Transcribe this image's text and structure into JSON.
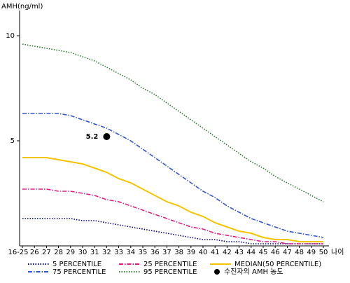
{
  "chart_data": {
    "type": "line",
    "y_label": "AMH(ng/ml)",
    "x_label": "나이",
    "categories": [
      "16-25",
      "26",
      "27",
      "28",
      "29",
      "30",
      "31",
      "32",
      "33",
      "34",
      "35",
      "36",
      "37",
      "38",
      "39",
      "40",
      "41",
      "42",
      "43",
      "44",
      "45",
      "46",
      "47",
      "48",
      "49",
      "50"
    ],
    "ylim": [
      0,
      11.2
    ],
    "yticks": [
      5,
      10
    ],
    "series": [
      {
        "name": "5 PERCENTILE",
        "color": "#000080",
        "style": "dotted",
        "values": [
          1.3,
          1.3,
          1.3,
          1.3,
          1.3,
          1.2,
          1.2,
          1.1,
          1.0,
          0.9,
          0.8,
          0.7,
          0.6,
          0.5,
          0.4,
          0.3,
          0.3,
          0.2,
          0.2,
          0.1,
          0.1,
          0.1,
          0.1,
          0.1,
          0.1,
          0.1
        ]
      },
      {
        "name": "25 PERCENTILE",
        "color": "#e0207f",
        "style": "dashdot",
        "values": [
          2.7,
          2.7,
          2.7,
          2.6,
          2.6,
          2.5,
          2.4,
          2.2,
          2.1,
          1.9,
          1.7,
          1.5,
          1.3,
          1.1,
          0.9,
          0.8,
          0.6,
          0.5,
          0.4,
          0.3,
          0.2,
          0.2,
          0.1,
          0.1,
          0.1,
          0.1
        ]
      },
      {
        "name": "MEDIAN(50 PERCENTILE)",
        "color": "#f5c400",
        "style": "solid",
        "values": [
          4.2,
          4.2,
          4.2,
          4.1,
          4.0,
          3.9,
          3.7,
          3.5,
          3.2,
          3.0,
          2.7,
          2.4,
          2.1,
          1.9,
          1.6,
          1.4,
          1.1,
          0.9,
          0.7,
          0.6,
          0.4,
          0.3,
          0.3,
          0.2,
          0.2,
          0.2
        ]
      },
      {
        "name": "75 PERCENTILE",
        "color": "#3355cc",
        "style": "dashdot",
        "values": [
          6.3,
          6.3,
          6.3,
          6.3,
          6.2,
          6.0,
          5.8,
          5.6,
          5.3,
          5.0,
          4.6,
          4.2,
          3.8,
          3.4,
          3.0,
          2.6,
          2.3,
          1.9,
          1.6,
          1.3,
          1.1,
          0.9,
          0.7,
          0.6,
          0.5,
          0.4
        ]
      },
      {
        "name": "95 PERCENTILE",
        "color": "#2e7d32",
        "style": "dotted",
        "values": [
          9.6,
          9.5,
          9.4,
          9.3,
          9.2,
          9.0,
          8.8,
          8.5,
          8.2,
          7.9,
          7.5,
          7.2,
          6.8,
          6.4,
          6.0,
          5.6,
          5.2,
          4.8,
          4.4,
          4.0,
          3.7,
          3.3,
          3.0,
          2.7,
          2.4,
          2.1
        ]
      }
    ],
    "marker": {
      "name": "수진자의 AMH 농도",
      "x": "32",
      "value": 5.2,
      "color": "#000000"
    }
  }
}
